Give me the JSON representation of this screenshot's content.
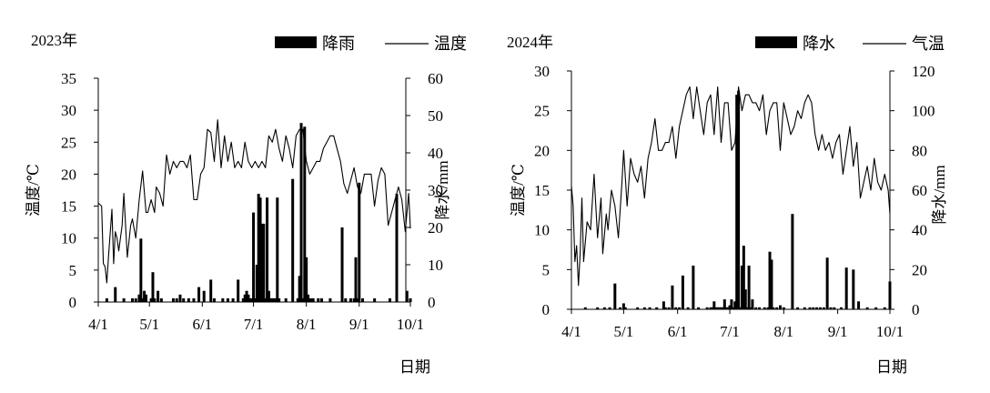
{
  "chart_data": [
    {
      "type": "bar+line",
      "year_label": "2023年",
      "xlabel": "日期",
      "ylabel_left": "温度/℃",
      "ylabel_right": "降水/mm",
      "legend": {
        "bar": "降雨",
        "line": "温度",
        "placement": "top-right"
      },
      "x_ticks": [
        "4/1",
        "5/1",
        "6/1",
        "7/1",
        "8/1",
        "9/1",
        "10/1"
      ],
      "x_tick_days": [
        0,
        30,
        61,
        91,
        122,
        153,
        183
      ],
      "ylim_left": [
        0,
        35
      ],
      "yticks_left": [
        0,
        5,
        10,
        15,
        20,
        25,
        30,
        35
      ],
      "ylim_right": [
        0,
        60
      ],
      "yticks_right": [
        0,
        10,
        20,
        30,
        40,
        50,
        60
      ],
      "temperature": {
        "name": "温度",
        "days": [
          0,
          2,
          3,
          4,
          5,
          6,
          8,
          9,
          10,
          11,
          12,
          14,
          15,
          17,
          19,
          20,
          22,
          24,
          26,
          28,
          29,
          31,
          33,
          34,
          36,
          38,
          40,
          42,
          44,
          46,
          48,
          50,
          52,
          54,
          56,
          58,
          60,
          62,
          64,
          66,
          68,
          70,
          72,
          74,
          76,
          78,
          80,
          82,
          84,
          86,
          88,
          90,
          92,
          94,
          96,
          98,
          100,
          102,
          104,
          106,
          108,
          110,
          112,
          114,
          116,
          118,
          120,
          122,
          124,
          126,
          128,
          130,
          132,
          134,
          136,
          138,
          140,
          142,
          144,
          146,
          148,
          150,
          152,
          154,
          156,
          158,
          160,
          162,
          164,
          166,
          168,
          170,
          172,
          174,
          176,
          178,
          180,
          182,
          183
        ],
        "values": [
          15.5,
          15,
          6,
          5.5,
          3,
          7,
          14.5,
          6,
          11,
          10,
          8,
          12,
          17,
          7,
          12,
          13,
          10,
          16,
          20.5,
          14,
          14,
          16,
          14,
          18,
          17,
          15,
          23,
          20,
          22,
          21,
          22,
          22,
          21,
          23,
          16,
          16,
          20,
          21,
          27,
          26.5,
          22,
          28.5,
          21,
          26,
          22,
          25,
          21,
          22,
          21,
          25,
          22,
          21,
          22,
          21,
          22,
          21,
          26,
          25,
          27,
          24,
          22,
          26,
          24,
          21,
          26,
          27,
          27,
          22,
          20,
          21,
          22,
          22,
          24,
          25,
          26,
          26,
          24,
          22,
          18.5,
          17,
          19,
          21,
          18,
          17,
          20,
          20,
          20,
          15,
          19,
          21,
          20,
          12,
          14,
          16,
          18,
          16,
          11,
          17,
          11.5
        ]
      },
      "precipitation": {
        "name": "降雨",
        "days": [
          5,
          10,
          15,
          20,
          22,
          24,
          25,
          26,
          27,
          28,
          31,
          32,
          33,
          35,
          37,
          44,
          46,
          48,
          50,
          53,
          56,
          59,
          62,
          66,
          68,
          73,
          76,
          79,
          82,
          85,
          86,
          87,
          88,
          89,
          90,
          91,
          92,
          93,
          94,
          95,
          96,
          97,
          98,
          99,
          100,
          101,
          102,
          103,
          104,
          105,
          106,
          110,
          114,
          117,
          118,
          119,
          120,
          121,
          122,
          123,
          124,
          125,
          126,
          129,
          131,
          136,
          143,
          145,
          148,
          150,
          151,
          152,
          153,
          155,
          162,
          171,
          175,
          181,
          183
        ],
        "values": [
          1,
          4,
          1,
          1,
          1,
          2,
          17,
          1,
          3,
          2,
          1,
          8,
          1,
          3,
          1,
          1,
          1,
          2,
          1,
          1,
          1,
          4,
          3,
          6,
          1,
          1,
          1,
          1,
          6,
          1,
          2,
          3,
          2,
          1,
          1,
          24,
          1,
          10,
          29,
          28,
          21,
          21,
          1,
          28,
          3,
          1,
          1,
          1,
          1,
          28,
          1,
          1,
          33,
          1,
          7,
          48,
          1,
          47,
          12,
          2,
          1,
          1,
          1,
          1,
          1,
          1,
          20,
          1,
          1,
          1,
          12,
          1,
          32,
          1,
          1,
          1,
          29,
          3,
          1
        ]
      }
    },
    {
      "type": "bar+line",
      "year_label": "2024年",
      "xlabel": "日期",
      "ylabel_left": "温度/℃",
      "ylabel_right": "降水/mm",
      "legend": {
        "bar": "降水",
        "line": "气温",
        "placement": "top-right"
      },
      "x_ticks": [
        "4/1",
        "5/1",
        "6/1",
        "7/1",
        "8/1",
        "9/1",
        "10/1"
      ],
      "x_tick_days": [
        0,
        30,
        61,
        91,
        122,
        153,
        183
      ],
      "ylim_left": [
        0,
        30
      ],
      "yticks_left": [
        0,
        5,
        10,
        15,
        20,
        25,
        30
      ],
      "ylim_right": [
        0,
        120
      ],
      "yticks_right": [
        0,
        20,
        40,
        60,
        80,
        100,
        120
      ],
      "temperature": {
        "name": "气温",
        "days": [
          0,
          1,
          2,
          3,
          4,
          5,
          6,
          7,
          9,
          11,
          13,
          15,
          17,
          18,
          20,
          21,
          23,
          25,
          27,
          29,
          30,
          32,
          34,
          36,
          38,
          40,
          42,
          44,
          46,
          48,
          50,
          52,
          54,
          56,
          58,
          60,
          62,
          64,
          66,
          68,
          70,
          72,
          74,
          76,
          78,
          80,
          82,
          84,
          86,
          88,
          90,
          92,
          94,
          96,
          98,
          100,
          102,
          104,
          106,
          108,
          110,
          112,
          114,
          116,
          118,
          120,
          122,
          124,
          126,
          128,
          130,
          132,
          134,
          136,
          138,
          140,
          142,
          144,
          146,
          148,
          150,
          152,
          154,
          156,
          158,
          160,
          162,
          164,
          166,
          168,
          170,
          172,
          174,
          176,
          178,
          180,
          182,
          183
        ],
        "values": [
          15.5,
          13,
          6,
          8,
          3,
          7,
          14,
          6,
          11,
          10,
          17,
          9,
          14,
          7,
          12,
          10,
          15,
          13,
          9,
          16,
          20,
          13,
          19,
          17,
          16,
          18,
          14,
          19,
          21,
          24,
          20,
          20,
          21,
          21,
          23,
          19,
          23,
          25,
          27,
          28,
          24,
          28,
          25,
          22,
          26,
          27,
          22,
          28,
          21,
          26,
          26,
          20,
          21,
          28,
          25,
          27,
          27,
          26,
          26,
          25,
          27,
          22,
          25,
          26,
          26,
          20,
          26,
          24,
          22,
          23,
          25,
          24,
          26,
          27,
          26,
          22,
          20,
          22,
          20,
          21,
          19,
          21,
          22,
          17,
          20,
          23,
          18,
          21,
          14,
          16,
          18,
          15,
          19,
          16,
          15,
          17,
          15,
          12
        ]
      },
      "precipitation": {
        "name": "降水",
        "days": [
          8,
          15,
          19,
          22,
          25,
          28,
          30,
          31,
          38,
          42,
          45,
          49,
          53,
          54,
          56,
          58,
          60,
          62,
          64,
          67,
          70,
          73,
          78,
          80,
          81,
          82,
          83,
          84,
          85,
          86,
          87,
          88,
          89,
          90,
          91,
          92,
          93,
          94,
          95,
          96,
          97,
          98,
          99,
          100,
          101,
          102,
          103,
          104,
          106,
          108,
          111,
          113,
          114,
          115,
          116,
          118,
          120,
          122,
          127,
          130,
          134,
          137,
          139,
          141,
          143,
          145,
          147,
          149,
          151,
          155,
          158,
          162,
          165,
          170,
          175,
          180,
          183
        ],
        "values": [
          1,
          1,
          1,
          1,
          13,
          1,
          3,
          1,
          1,
          1,
          1,
          1,
          4,
          1,
          1,
          12,
          1,
          1,
          17,
          1,
          22,
          1,
          1,
          1,
          1,
          4,
          1,
          1,
          1,
          1,
          1,
          5,
          1,
          1,
          2,
          5,
          1,
          4,
          108,
          110,
          1,
          22,
          32,
          10,
          1,
          22,
          1,
          5,
          1,
          1,
          1,
          1,
          29,
          25,
          1,
          1,
          2,
          1,
          48,
          1,
          1,
          1,
          1,
          1,
          1,
          1,
          26,
          1,
          1,
          1,
          21,
          20,
          4,
          1,
          1,
          1,
          14
        ]
      }
    }
  ]
}
